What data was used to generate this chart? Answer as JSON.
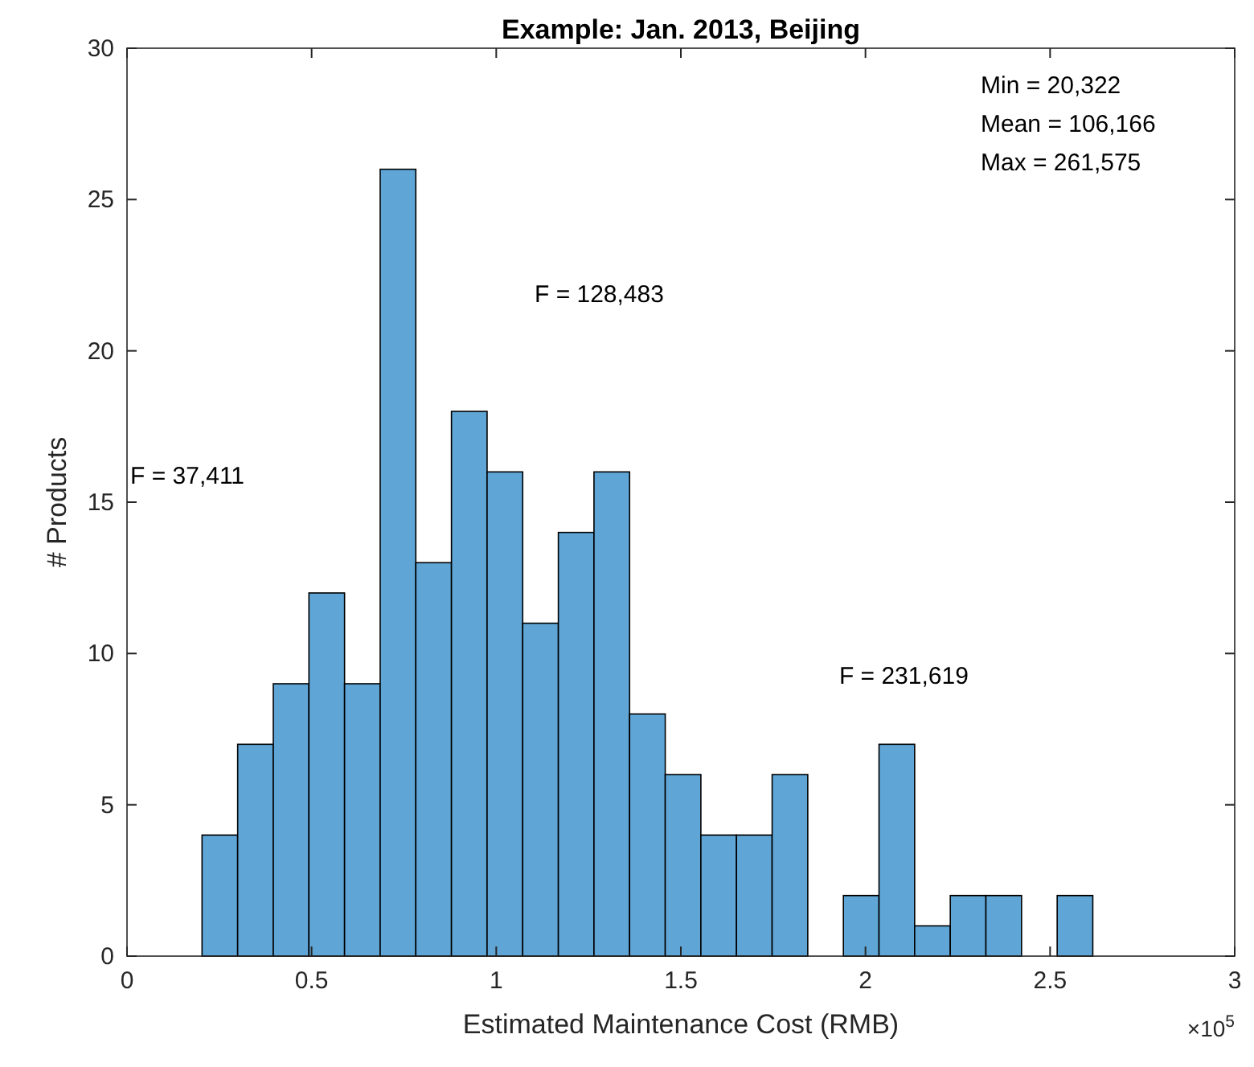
{
  "chart_data": {
    "type": "histogram",
    "title": "Example: Jan. 2013, Beijing",
    "xlabel": "Estimated Maintenance Cost (RMB)",
    "ylabel": "# Products",
    "color": "#5fa5d6",
    "bins": [
      0.2032,
      0.2997,
      0.3962,
      0.4927,
      0.5892,
      0.6857,
      0.7822,
      0.8787,
      0.9752,
      1.0717,
      1.1682,
      1.2647,
      1.3612,
      1.4577,
      1.5542,
      1.6507,
      1.7472,
      1.8437,
      1.9402,
      2.0367,
      2.1332,
      2.2297,
      2.3262,
      2.4227,
      2.5192,
      2.6157
    ],
    "values": [
      4,
      7,
      9,
      12,
      9,
      26,
      13,
      18,
      16,
      11,
      14,
      16,
      8,
      6,
      4,
      4,
      6,
      0,
      2,
      7,
      1,
      2,
      2,
      0,
      2
    ],
    "xlim": [
      0,
      3
    ],
    "xticks": [
      0,
      0.5,
      1,
      1.5,
      2,
      2.5,
      3
    ],
    "ylim": [
      0,
      30
    ],
    "yticks": [
      0,
      5,
      10,
      15,
      20,
      25,
      30
    ],
    "grid": false,
    "annotations": [
      "Min = 20,322",
      "Mean = 106,166",
      "Max = 261,575",
      "×10$^{5}$",
      "F = 37,411",
      "F = 128,483",
      "F = 231,619"
    ]
  }
}
